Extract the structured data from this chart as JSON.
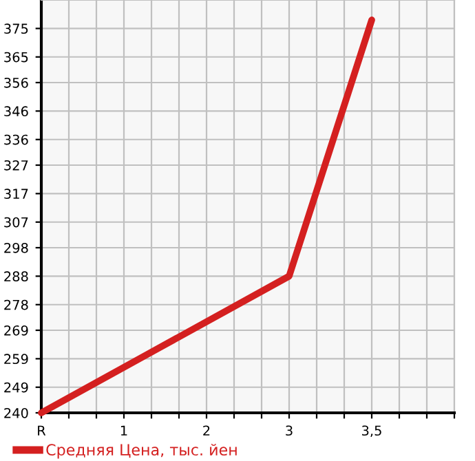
{
  "chart_data": {
    "type": "line",
    "categories": [
      "R",
      null,
      null,
      "1",
      null,
      null,
      "2",
      null,
      null,
      "3",
      null,
      null,
      "3,5",
      null,
      null,
      null
    ],
    "series": [
      {
        "name": "Средняя Цена, тыс. йен",
        "color": "#d42020",
        "values": [
          240,
          null,
          null,
          null,
          null,
          null,
          null,
          null,
          null,
          288,
          null,
          null,
          378,
          null,
          null,
          null
        ]
      }
    ],
    "ylim": [
      240,
      385
    ],
    "yticks": [
      240,
      249,
      259,
      269,
      278,
      288,
      298,
      307,
      317,
      327,
      336,
      346,
      356,
      365,
      375
    ],
    "grid": true,
    "legend": "bottom left",
    "marker": "none",
    "line_style": "solid"
  }
}
